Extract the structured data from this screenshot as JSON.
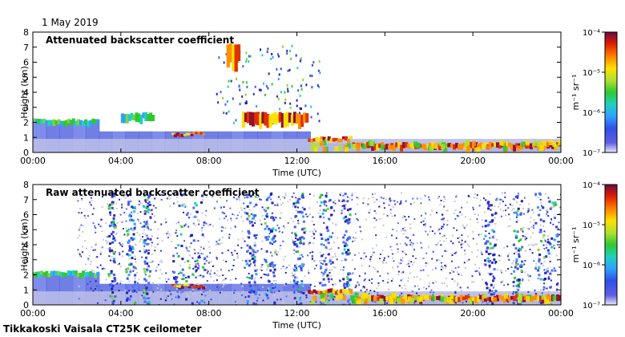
{
  "figure": {
    "date": "1 May 2019",
    "footer": "Tikkakoski Vaisala CT25K ceilometer"
  },
  "colorbar": {
    "unit_label": "m⁻¹ sr⁻¹",
    "scale": "log",
    "range": [
      1e-07,
      0.0001
    ],
    "tick_labels": [
      "10⁻⁴",
      "10⁻⁵",
      "10⁻⁶",
      "10⁻⁷"
    ],
    "colormap": [
      "#3030c8",
      "#3050e8",
      "#30a0ff",
      "#20d0c0",
      "#30c830",
      "#b0e030",
      "#ffe000",
      "#ff8000",
      "#e02000",
      "#901030",
      "#6a0a40"
    ]
  },
  "chart_data": [
    {
      "type": "heatmap",
      "title": "Attenuated backscatter coefficient",
      "xlabel": "Time (UTC)",
      "ylabel": "Height (km)",
      "xlim": [
        "00:00",
        "24:00"
      ],
      "ylim": [
        0,
        8
      ],
      "x_ticks": [
        "00:00",
        "04:00",
        "08:00",
        "12:00",
        "16:00",
        "20:00",
        "00:00"
      ],
      "y_ticks": [
        0,
        1,
        2,
        3,
        4,
        5,
        6,
        7,
        8
      ],
      "color_scale": "log",
      "color_range": [
        1e-07,
        0.0001
      ],
      "features": [
        {
          "name": "boundary layer top",
          "time_utc": [
            0,
            3
          ],
          "height_km": [
            1.8,
            2.2
          ]
        },
        {
          "name": "aerosol layer",
          "time_utc": [
            4,
            5.5
          ],
          "height_km": [
            2.0,
            2.6
          ]
        },
        {
          "name": "cloud base",
          "time_utc": [
            6.3,
            7.8
          ],
          "height_km": [
            1.1,
            1.3
          ]
        },
        {
          "name": "elevated cloud",
          "time_utc": [
            8.8,
            9.4
          ],
          "height_km": [
            5.5,
            7.2
          ]
        },
        {
          "name": "cloud layer",
          "time_utc": [
            9.5,
            12.5
          ],
          "height_km": [
            1.6,
            2.6
          ]
        },
        {
          "name": "low cloud base",
          "time_utc": [
            12.5,
            14.5
          ],
          "height_km": [
            0.7,
            1.0
          ]
        },
        {
          "name": "low cloud base",
          "time_utc": [
            14.5,
            24
          ],
          "height_km": [
            0.2,
            0.6
          ]
        }
      ]
    },
    {
      "type": "heatmap",
      "title": "Raw attenuated backscatter coefficient",
      "xlabel": "Time (UTC)",
      "ylabel": "Height (km)",
      "xlim": [
        "00:00",
        "24:00"
      ],
      "ylim": [
        0,
        8
      ],
      "x_ticks": [
        "00:00",
        "04:00",
        "08:00",
        "12:00",
        "16:00",
        "20:00",
        "00:00"
      ],
      "y_ticks": [
        0,
        1,
        2,
        3,
        4,
        5,
        6,
        7,
        8
      ],
      "color_scale": "log",
      "color_range": [
        1e-07,
        0.0001
      ],
      "features": [
        {
          "name": "boundary layer top",
          "time_utc": [
            0,
            3
          ],
          "height_km": [
            1.8,
            2.2
          ]
        },
        {
          "name": "noisy profiles",
          "time_utc": [
            3.3,
            24
          ],
          "height_km": [
            0,
            7.5
          ]
        },
        {
          "name": "cloud base",
          "time_utc": [
            6.3,
            7.8
          ],
          "height_km": [
            1.1,
            1.3
          ]
        },
        {
          "name": "low cloud base",
          "time_utc": [
            12.5,
            14.5
          ],
          "height_km": [
            0.7,
            1.0
          ]
        },
        {
          "name": "low cloud base",
          "time_utc": [
            14.5,
            24
          ],
          "height_km": [
            0.2,
            0.6
          ]
        }
      ]
    }
  ]
}
